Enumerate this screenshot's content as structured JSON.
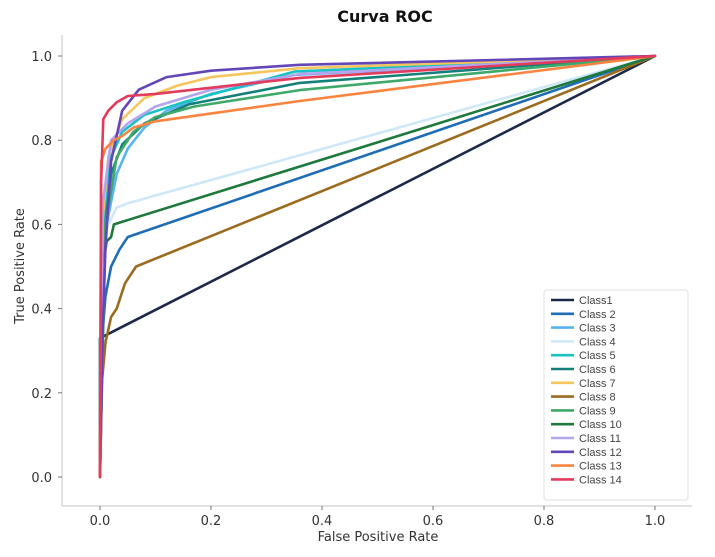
{
  "chart_data": {
    "type": "line",
    "title": "Curva ROC",
    "xlabel": "False Positive Rate",
    "ylabel": "True Positive Rate",
    "xlim": [
      -0.07,
      1.07
    ],
    "ylim": [
      -0.07,
      1.07
    ],
    "xticks": [
      "0.0",
      "0.2",
      "0.4",
      "0.6",
      "0.8",
      "1.0"
    ],
    "yticks": [
      "0.0",
      "0.2",
      "0.4",
      "0.6",
      "0.8",
      "1.0"
    ],
    "xtick_values": [
      0,
      0.2,
      0.4,
      0.6,
      0.8,
      1.0
    ],
    "ytick_values": [
      0,
      0.2,
      0.4,
      0.6,
      0.8,
      1.0
    ],
    "grid": false,
    "legend_position": "lower-right",
    "series": [
      {
        "name": "Class1",
        "color": "#1b2a4a",
        "points": [
          [
            0,
            0
          ],
          [
            0,
            0.33
          ],
          [
            1,
            1
          ]
        ]
      },
      {
        "name": "Class 2",
        "color": "#1f6db5",
        "points": [
          [
            0,
            0
          ],
          [
            0.005,
            0.35
          ],
          [
            0.01,
            0.43
          ],
          [
            0.02,
            0.5
          ],
          [
            0.035,
            0.54
          ],
          [
            0.05,
            0.57
          ],
          [
            1,
            1
          ]
        ]
      },
      {
        "name": "Class 3",
        "color": "#56b4f0",
        "points": [
          [
            0,
            0
          ],
          [
            0.005,
            0.5
          ],
          [
            0.015,
            0.62
          ],
          [
            0.03,
            0.72
          ],
          [
            0.05,
            0.78
          ],
          [
            0.08,
            0.83
          ],
          [
            0.12,
            0.87
          ],
          [
            0.2,
            0.91
          ],
          [
            0.35,
            0.955
          ],
          [
            1,
            1
          ]
        ]
      },
      {
        "name": "Class 4",
        "color": "#cfe8f7",
        "points": [
          [
            0,
            0
          ],
          [
            0.005,
            0.55
          ],
          [
            0.015,
            0.6
          ],
          [
            0.03,
            0.64
          ],
          [
            0.05,
            0.65
          ],
          [
            1,
            1
          ]
        ]
      },
      {
        "name": "Class 5",
        "color": "#17c3c3",
        "points": [
          [
            0,
            0
          ],
          [
            0.005,
            0.6
          ],
          [
            0.02,
            0.76
          ],
          [
            0.04,
            0.82
          ],
          [
            0.08,
            0.86
          ],
          [
            0.15,
            0.89
          ],
          [
            0.35,
            0.963
          ],
          [
            1,
            1
          ]
        ]
      },
      {
        "name": "Class 6",
        "color": "#14807a",
        "points": [
          [
            0,
            0
          ],
          [
            0.005,
            0.55
          ],
          [
            0.02,
            0.72
          ],
          [
            0.04,
            0.79
          ],
          [
            0.08,
            0.84
          ],
          [
            0.16,
            0.885
          ],
          [
            0.36,
            0.936
          ],
          [
            1,
            1
          ]
        ]
      },
      {
        "name": "Class 7",
        "color": "#f5c55e",
        "points": [
          [
            0,
            0
          ],
          [
            0.005,
            0.62
          ],
          [
            0.015,
            0.76
          ],
          [
            0.04,
            0.85
          ],
          [
            0.08,
            0.9
          ],
          [
            0.14,
            0.93
          ],
          [
            0.2,
            0.95
          ],
          [
            0.36,
            0.971
          ],
          [
            1,
            1
          ]
        ]
      },
      {
        "name": "Class 8",
        "color": "#9c6b1f",
        "points": [
          [
            0,
            0
          ],
          [
            0.003,
            0.22
          ],
          [
            0.01,
            0.32
          ],
          [
            0.02,
            0.38
          ],
          [
            0.03,
            0.4
          ],
          [
            0.045,
            0.46
          ],
          [
            0.065,
            0.5
          ],
          [
            1,
            1
          ]
        ]
      },
      {
        "name": "Class 9",
        "color": "#3fa96a",
        "points": [
          [
            0,
            0
          ],
          [
            0.01,
            0.6
          ],
          [
            0.03,
            0.76
          ],
          [
            0.06,
            0.82
          ],
          [
            0.1,
            0.855
          ],
          [
            0.17,
            0.88
          ],
          [
            0.36,
            0.919
          ],
          [
            1,
            1
          ]
        ]
      },
      {
        "name": "Class 10",
        "color": "#1e7a3c",
        "points": [
          [
            0,
            0
          ],
          [
            0.005,
            0.5
          ],
          [
            0.012,
            0.56
          ],
          [
            0.02,
            0.57
          ],
          [
            0.025,
            0.6
          ],
          [
            1,
            1
          ]
        ]
      },
      {
        "name": "Class 11",
        "color": "#b3a4ee",
        "points": [
          [
            0,
            0
          ],
          [
            0.005,
            0.65
          ],
          [
            0.02,
            0.8
          ],
          [
            0.05,
            0.84
          ],
          [
            0.1,
            0.88
          ],
          [
            0.2,
            0.92
          ],
          [
            0.36,
            0.957
          ],
          [
            1,
            1
          ]
        ]
      },
      {
        "name": "Class 12",
        "color": "#6347b8",
        "points": [
          [
            0,
            0
          ],
          [
            0.005,
            0.35
          ],
          [
            0.01,
            0.55
          ],
          [
            0.02,
            0.75
          ],
          [
            0.04,
            0.87
          ],
          [
            0.07,
            0.92
          ],
          [
            0.12,
            0.95
          ],
          [
            0.2,
            0.965
          ],
          [
            0.36,
            0.979
          ],
          [
            1,
            1
          ]
        ]
      },
      {
        "name": "Class 13",
        "color": "#f98440",
        "points": [
          [
            0,
            0
          ],
          [
            0.002,
            0.75
          ],
          [
            0.01,
            0.78
          ],
          [
            0.025,
            0.8
          ],
          [
            0.04,
            0.81
          ],
          [
            0.06,
            0.83
          ],
          [
            0.1,
            0.845
          ],
          [
            0.36,
            0.893
          ],
          [
            1,
            1
          ]
        ]
      },
      {
        "name": "Class 14",
        "color": "#e23b5c",
        "points": [
          [
            0,
            0
          ],
          [
            0.002,
            0.7
          ],
          [
            0.006,
            0.85
          ],
          [
            0.015,
            0.87
          ],
          [
            0.03,
            0.89
          ],
          [
            0.05,
            0.905
          ],
          [
            0.1,
            0.91
          ],
          [
            0.36,
            0.948
          ],
          [
            1,
            1
          ]
        ]
      }
    ]
  }
}
